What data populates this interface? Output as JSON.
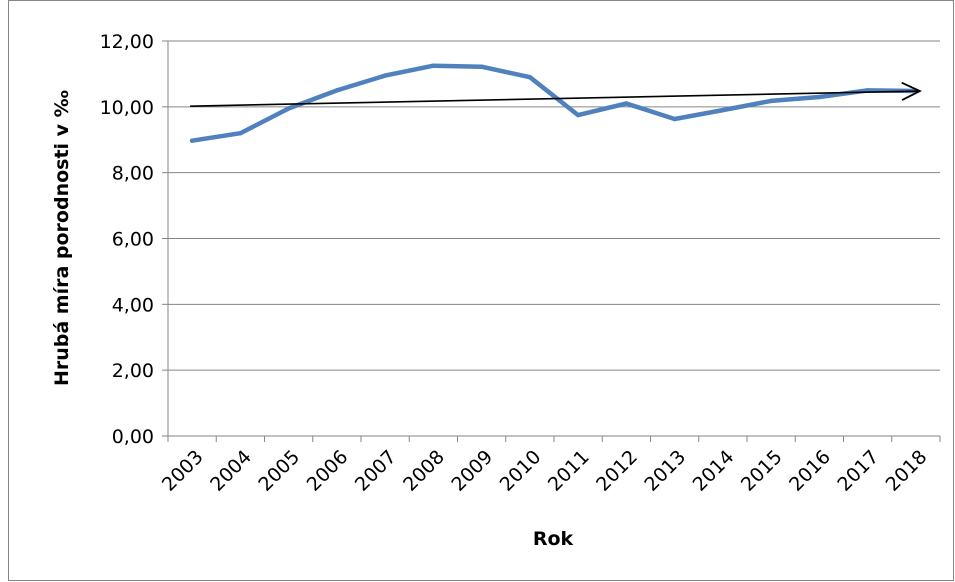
{
  "chart_data": {
    "type": "line",
    "title": "",
    "xlabel": "Rok",
    "ylabel": "Hrubá míra porodnosti v ‰",
    "categories": [
      "2003",
      "2004",
      "2005",
      "2006",
      "2007",
      "2008",
      "2009",
      "2010",
      "2011",
      "2012",
      "2013",
      "2014",
      "2015",
      "2016",
      "2017",
      "2018"
    ],
    "series": [
      {
        "values": [
          8.97,
          9.2,
          9.95,
          10.5,
          10.95,
          11.25,
          11.22,
          10.9,
          9.75,
          10.1,
          9.63,
          9.9,
          10.18,
          10.3,
          10.5,
          10.48
        ]
      }
    ],
    "trendline": {
      "start": 10.02,
      "end": 10.48,
      "arrow": true
    },
    "ylim": [
      0,
      12
    ],
    "yticks": [
      "0,00",
      "2,00",
      "4,00",
      "6,00",
      "8,00",
      "10,00",
      "12,00"
    ],
    "grid": true,
    "colors": {
      "series": "#4f81bd",
      "trendline": "#000000",
      "grid": "#868686",
      "border": "#868686"
    }
  }
}
